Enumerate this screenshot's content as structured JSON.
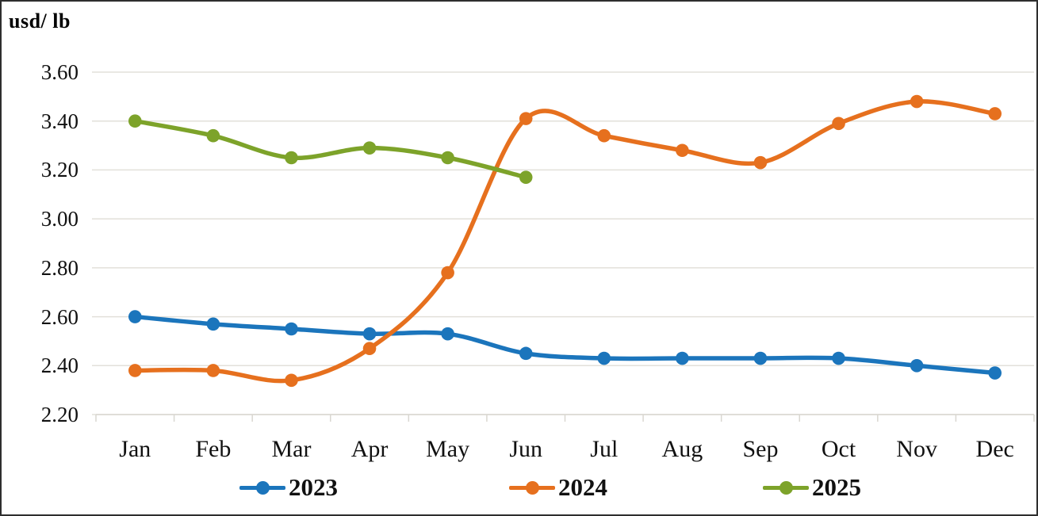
{
  "title": "usd/ lb",
  "chart_data": {
    "type": "line",
    "title": "usd/ lb",
    "xlabel": "",
    "ylabel": "usd/ lb",
    "categories": [
      "Jan",
      "Feb",
      "Mar",
      "Apr",
      "May",
      "Jun",
      "Jul",
      "Aug",
      "Sep",
      "Oct",
      "Nov",
      "Dec"
    ],
    "y_tick_labels": [
      "3.60",
      "3.40",
      "3.20",
      "3.00",
      "2.80",
      "2.60",
      "2.40",
      "2.20"
    ],
    "ylim": [
      2.2,
      3.6
    ],
    "y_step": 0.2,
    "grid": true,
    "smooth_lines": true,
    "legend_position": "bottom",
    "series": [
      {
        "name": "2023",
        "color": "#1B75BC",
        "values": [
          2.6,
          2.57,
          2.55,
          2.53,
          2.53,
          2.45,
          2.43,
          2.43,
          2.43,
          2.43,
          2.4,
          2.37
        ]
      },
      {
        "name": "2024",
        "color": "#E6701E",
        "values": [
          2.38,
          2.38,
          2.34,
          2.47,
          2.78,
          3.41,
          3.34,
          3.28,
          3.23,
          3.39,
          3.48,
          3.43
        ]
      },
      {
        "name": "2025",
        "color": "#7DA32A",
        "values": [
          3.4,
          3.34,
          3.25,
          3.29,
          3.25,
          3.17
        ]
      }
    ]
  },
  "colors": {
    "gridline": "#e2e0da",
    "axis": "#d9d7d1",
    "text": "#111111",
    "border": "#2e2e2e",
    "background": "#ffffff"
  }
}
